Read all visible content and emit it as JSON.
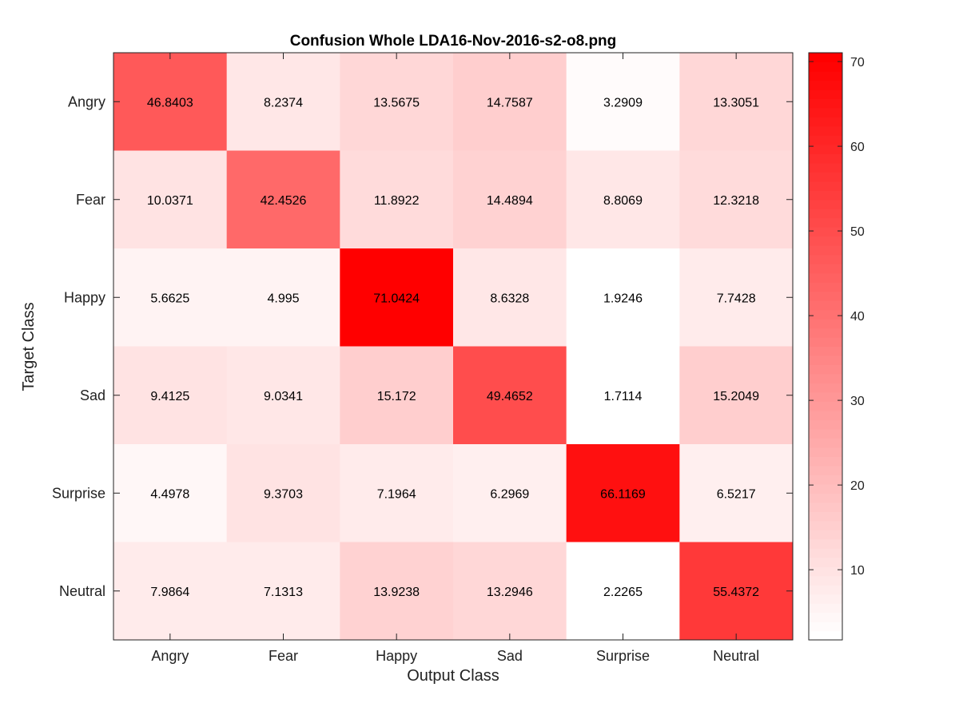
{
  "chart_data": {
    "type": "heatmap",
    "title": "Confusion Whole LDA16-Nov-2016-s2-o8.png",
    "xlabel": "Output Class",
    "ylabel": "Target Class",
    "x_categories": [
      "Angry",
      "Fear",
      "Happy",
      "Sad",
      "Surprise",
      "Neutral"
    ],
    "y_categories": [
      "Angry",
      "Fear",
      "Happy",
      "Sad",
      "Surprise",
      "Neutral"
    ],
    "values": [
      [
        "46.8403",
        "8.2374",
        "13.5675",
        "14.7587",
        "3.2909",
        "13.3051"
      ],
      [
        "10.0371",
        "42.4526",
        "11.8922",
        "14.4894",
        "8.8069",
        "12.3218"
      ],
      [
        "5.6625",
        "4.995",
        "71.0424",
        "8.6328",
        "1.9246",
        "7.7428"
      ],
      [
        "9.4125",
        "9.0341",
        "15.172",
        "49.4652",
        "1.7114",
        "15.2049"
      ],
      [
        "4.4978",
        "9.3703",
        "7.1964",
        "6.2969",
        "66.1169",
        "6.5217"
      ],
      [
        "7.9864",
        "7.1313",
        "13.9238",
        "13.2946",
        "2.2265",
        "55.4372"
      ]
    ],
    "color_scale": {
      "min": 1.7114,
      "max": 71.0424,
      "low_color": "#ffffff",
      "high_color": "#ff0000",
      "levels": 64,
      "ticks": [
        "10",
        "20",
        "30",
        "40",
        "50",
        "60",
        "70"
      ]
    },
    "grid": false,
    "colorbar_position": "right"
  }
}
